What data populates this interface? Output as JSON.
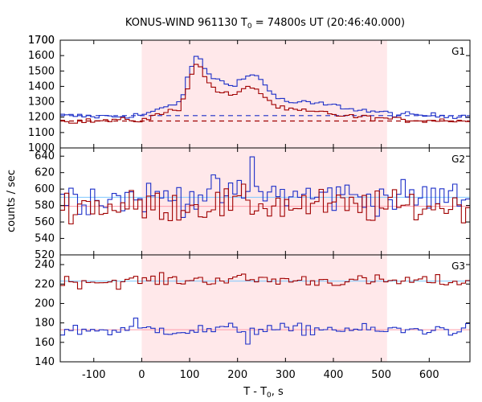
{
  "title": "KONUS-WIND 961130 T",
  "title_sub": "0",
  "title_rest": " = 74800s UT (20:46:40.000)",
  "ylabel": "counts / sec",
  "xlabel_main": "T - T",
  "xlabel_sub": "0",
  "xlabel_rest": ", s",
  "colors": {
    "highlight": "#ffe8ea",
    "high_series": "#a00000",
    "low_series": "#1c2fc8",
    "background_line_light": "#7ec8ff",
    "background_line_pink": "#ff9aa8"
  },
  "chart_data": {
    "type": "line",
    "grid": false,
    "x_range": [
      -170,
      685
    ],
    "x_ticks": [
      "-100",
      "0",
      "100",
      "200",
      "300",
      "400",
      "500",
      "600"
    ],
    "x_tick_values": [
      -100,
      0,
      100,
      200,
      300,
      400,
      500,
      600
    ],
    "highlight_interval": [
      0,
      512
    ],
    "panels": [
      {
        "label": "G1",
        "ylim": [
          1000,
          1700
        ],
        "y_ticks": [
          "1000",
          "1100",
          "1200",
          "1300",
          "1400",
          "1500",
          "1600",
          "1700"
        ],
        "y_tick_values": [
          1000,
          1100,
          1200,
          1300,
          1400,
          1500,
          1600,
          1700
        ],
        "background_levels": [
          1210,
          1175
        ],
        "x": [
          -170,
          -100,
          -50,
          0,
          40,
          80,
          100,
          110,
          120,
          140,
          160,
          180,
          200,
          220,
          235,
          250,
          280,
          300,
          350,
          380,
          420,
          460,
          512,
          550,
          600,
          650,
          685
        ],
        "series": [
          {
            "values": [
              1210,
              1205,
              1205,
              1215,
              1250,
              1300,
              1480,
              1600,
              1580,
              1480,
              1440,
              1410,
              1430,
              1460,
              1480,
              1440,
              1330,
              1300,
              1290,
              1285,
              1265,
              1245,
              1225,
              1215,
              1210,
              1210,
              1210
            ]
          },
          {
            "values": [
              1175,
              1175,
              1180,
              1180,
              1220,
              1260,
              1430,
              1560,
              1530,
              1420,
              1370,
              1345,
              1350,
              1390,
              1400,
              1350,
              1270,
              1250,
              1235,
              1230,
              1210,
              1200,
              1190,
              1180,
              1180,
              1180,
              1175
            ]
          }
        ]
      },
      {
        "label": "G2",
        "ylim": [
          520,
          650
        ],
        "y_ticks": [
          "520",
          "540",
          "560",
          "580",
          "600",
          "620",
          "640"
        ],
        "y_tick_values": [
          520,
          540,
          560,
          580,
          600,
          620,
          640
        ],
        "background_levels": [
          590,
          579
        ],
        "x": [
          -170,
          -100,
          -50,
          0,
          100,
          200,
          235,
          300,
          400,
          512,
          600,
          685
        ],
        "series": [
          {
            "values": [
              590,
              591,
              589,
              590,
              592,
              593,
              600,
              592,
              591,
              590,
              590,
              590
            ]
          },
          {
            "values": [
              579,
              580,
              578,
              579,
              580,
              581,
              582,
              580,
              579,
              578,
              579,
              579
            ]
          }
        ]
      },
      {
        "label": "G3",
        "ylim": [
          140,
          250
        ],
        "y_ticks": [
          "140",
          "160",
          "180",
          "200",
          "220",
          "240"
        ],
        "y_tick_values": [
          140,
          160,
          180,
          200,
          220,
          240
        ],
        "background_levels": [
          223,
          173
        ],
        "x": [
          -170,
          -100,
          -50,
          0,
          100,
          200,
          300,
          400,
          512,
          600,
          685
        ],
        "series": [
          {
            "values": [
              222,
              223,
              222,
              224,
              224,
              225,
              224,
              223,
              223,
              223,
              222
            ]
          },
          {
            "values": [
              172,
              173,
              172,
              174,
              172,
              174,
              173,
              174,
              172,
              173,
              173
            ]
          }
        ]
      }
    ]
  }
}
